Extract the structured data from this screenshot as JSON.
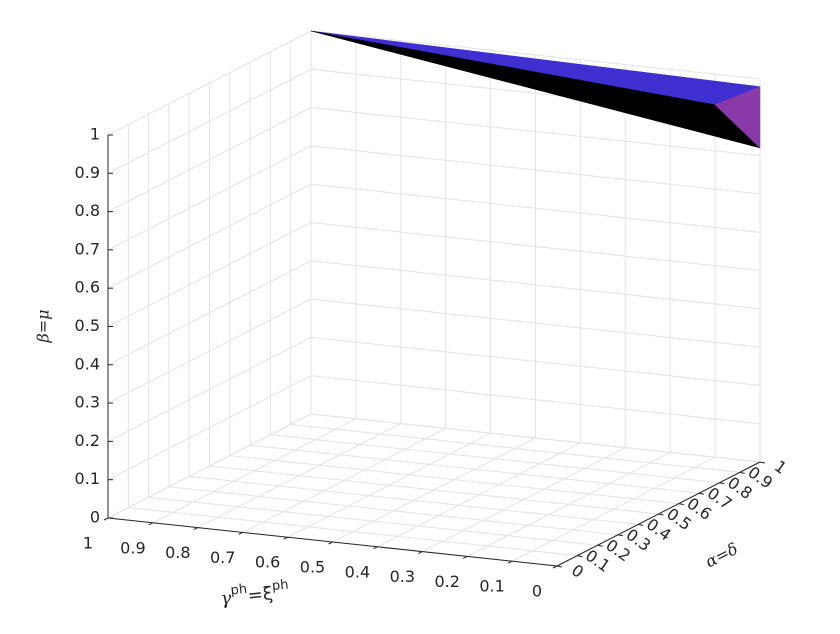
{
  "chart_data": {
    "type": "surface3d",
    "xlabel": [
      "γ",
      "ph",
      "=ξ",
      "ph"
    ],
    "ylabel": "α=δ",
    "zlabel": "β=μ",
    "xlim": [
      0,
      1
    ],
    "xticks": [
      0,
      0.1,
      0.2,
      0.3,
      0.4,
      0.5,
      0.6,
      0.7,
      0.8,
      0.9,
      1
    ],
    "ylim": [
      0,
      1
    ],
    "yticks": [
      0,
      0.1,
      0.2,
      0.3,
      0.4,
      0.5,
      0.6,
      0.7,
      0.8,
      0.9,
      1
    ],
    "zlim": [
      0,
      1
    ],
    "zticks": [
      0,
      0.1,
      0.2,
      0.3,
      0.4,
      0.5,
      0.6,
      0.7,
      0.8,
      0.9,
      1
    ],
    "grid": true,
    "surfaces": [
      {
        "color": "#3f2fd0",
        "vertices": [
          [
            1,
            1,
            1
          ],
          [
            0,
            1,
            0.98
          ],
          [
            0.1,
            1,
            0.92
          ]
        ]
      },
      {
        "color": "#000000",
        "vertices": [
          [
            1,
            1,
            1
          ],
          [
            0.1,
            1,
            0.92
          ],
          [
            0,
            1,
            0.82
          ]
        ]
      },
      {
        "color": "#8a3aa8",
        "vertices": [
          [
            0.1,
            1,
            0.92
          ],
          [
            0,
            1,
            0.98
          ],
          [
            0,
            1,
            0.82
          ]
        ]
      }
    ]
  }
}
